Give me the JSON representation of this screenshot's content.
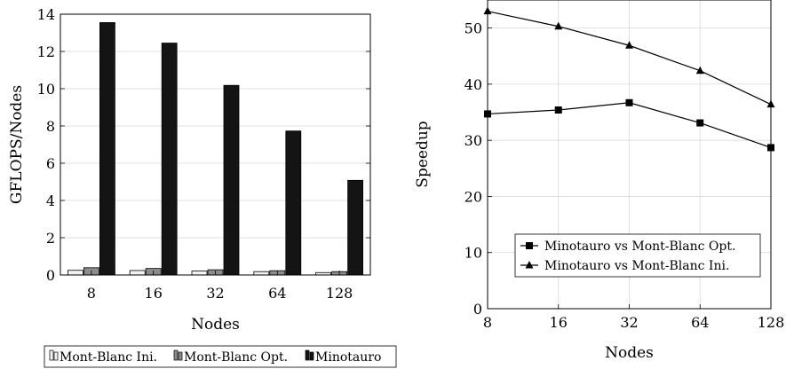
{
  "chart_data": [
    {
      "type": "bar",
      "xlabel": "Nodes",
      "ylabel": "GFLOPS/Nodes",
      "ylim": [
        0,
        14
      ],
      "yticks": [
        0,
        2,
        4,
        6,
        8,
        10,
        12,
        14
      ],
      "categories": [
        "8",
        "16",
        "32",
        "64",
        "128"
      ],
      "grid": "horizontal",
      "legend_position": "bottom",
      "series": [
        {
          "name": "Mont-Blanc Ini.",
          "color": "#f2f2f2",
          "values": [
            0.25,
            0.24,
            0.21,
            0.18,
            0.13
          ]
        },
        {
          "name": "Mont-Blanc Opt.",
          "color": "#8c8c8c",
          "values": [
            0.39,
            0.35,
            0.28,
            0.23,
            0.18
          ]
        },
        {
          "name": "Minotauro",
          "color": "#141414",
          "values": [
            13.55,
            12.45,
            10.18,
            7.73,
            5.08
          ]
        }
      ]
    },
    {
      "type": "line",
      "xlabel": "Nodes",
      "ylabel": "Speedup",
      "x": [
        8,
        16,
        32,
        64,
        128
      ],
      "xscale": "log2",
      "xticks": [
        "8",
        "16",
        "32",
        "64",
        "128"
      ],
      "ylim": [
        0,
        55
      ],
      "yticks": [
        0,
        10,
        20,
        30,
        40,
        50
      ],
      "grid": "both",
      "legend_position": "lower-center",
      "series": [
        {
          "name": "Minotauro vs Mont-Blanc Opt.",
          "marker": "square",
          "values": [
            34.7,
            35.4,
            36.7,
            33.1,
            28.7
          ]
        },
        {
          "name": "Minotauro vs Mont-Blanc Ini.",
          "marker": "triangle",
          "values": [
            53.0,
            50.3,
            46.9,
            42.4,
            36.4
          ]
        }
      ]
    }
  ]
}
